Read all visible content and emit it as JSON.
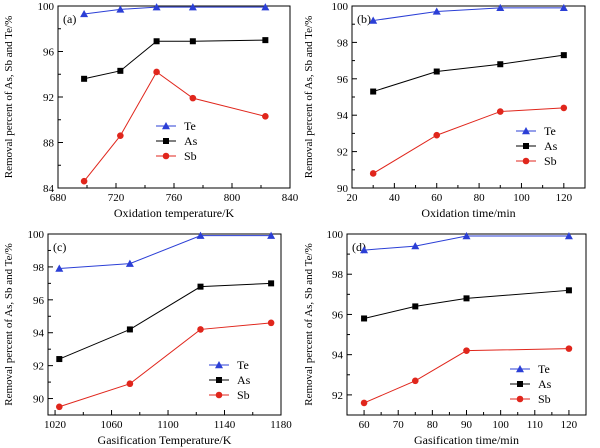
{
  "colors": {
    "Te": "#2b3fd6",
    "As": "#000000",
    "Sb": "#e0261c"
  },
  "chart_data": [
    {
      "id": "a",
      "type": "line",
      "panel_label": "(a)",
      "xlabel": "Oxidation temperature/K",
      "ylabel": "Removal percent of As, Sb and Te/%",
      "xlim": [
        680,
        840
      ],
      "ylim": [
        84,
        100
      ],
      "xticks": [
        680,
        720,
        760,
        800,
        840
      ],
      "yticks": [
        84,
        88,
        92,
        96,
        100
      ],
      "legend_position": "bottom-right",
      "series": [
        {
          "name": "Te",
          "marker": "triangle",
          "x": [
            698,
            723,
            748,
            773,
            823
          ],
          "y": [
            99.3,
            99.7,
            99.9,
            99.9,
            99.9
          ]
        },
        {
          "name": "As",
          "marker": "square",
          "x": [
            698,
            723,
            748,
            773,
            823
          ],
          "y": [
            93.6,
            94.3,
            96.9,
            96.9,
            97.0
          ]
        },
        {
          "name": "Sb",
          "marker": "circle",
          "x": [
            698,
            723,
            748,
            773,
            823
          ],
          "y": [
            84.6,
            88.6,
            94.2,
            91.9,
            90.3
          ]
        }
      ]
    },
    {
      "id": "b",
      "type": "line",
      "panel_label": "(b)",
      "xlabel": "Oxidation time/min",
      "ylabel": "Removal percent of As, Sb and Te/%",
      "xlim": [
        20,
        130
      ],
      "ylim": [
        90,
        100
      ],
      "xticks": [
        20,
        40,
        60,
        80,
        100,
        120
      ],
      "yticks": [
        90,
        92,
        94,
        96,
        98,
        100
      ],
      "legend_position": "bottom-right",
      "series": [
        {
          "name": "Te",
          "marker": "triangle",
          "x": [
            30,
            60,
            90,
            120
          ],
          "y": [
            99.2,
            99.7,
            99.9,
            99.9
          ]
        },
        {
          "name": "As",
          "marker": "square",
          "x": [
            30,
            60,
            90,
            120
          ],
          "y": [
            95.3,
            96.4,
            96.8,
            97.3
          ]
        },
        {
          "name": "Sb",
          "marker": "circle",
          "x": [
            30,
            60,
            90,
            120
          ],
          "y": [
            90.8,
            92.9,
            94.2,
            94.4
          ]
        }
      ]
    },
    {
      "id": "c",
      "type": "line",
      "panel_label": "(c)",
      "xlabel": "Gasification Temperature/K",
      "ylabel": "Removal percent of As, Sb and Te/%",
      "xlim": [
        1015,
        1180
      ],
      "ylim": [
        89,
        100
      ],
      "xticks": [
        1020,
        1060,
        1100,
        1140,
        1180
      ],
      "yticks": [
        90,
        92,
        94,
        96,
        98,
        100
      ],
      "legend_position": "bottom-right",
      "series": [
        {
          "name": "Te",
          "marker": "triangle",
          "x": [
            1023,
            1073,
            1123,
            1173
          ],
          "y": [
            97.9,
            98.2,
            99.9,
            99.9
          ]
        },
        {
          "name": "As",
          "marker": "square",
          "x": [
            1023,
            1073,
            1123,
            1173
          ],
          "y": [
            92.4,
            94.2,
            96.8,
            97.0
          ]
        },
        {
          "name": "Sb",
          "marker": "circle",
          "x": [
            1023,
            1073,
            1123,
            1173
          ],
          "y": [
            89.5,
            90.9,
            94.2,
            94.6
          ]
        }
      ]
    },
    {
      "id": "d",
      "type": "line",
      "panel_label": "(d)",
      "xlabel": "Gasification time/min",
      "ylabel": "Removal percent of As, Sb and Te/%",
      "xlim": [
        55,
        125
      ],
      "ylim": [
        91,
        100
      ],
      "xticks": [
        60,
        70,
        80,
        90,
        100,
        110,
        120
      ],
      "yticks": [
        92,
        94,
        96,
        98,
        100
      ],
      "legend_position": "bottom-right",
      "series": [
        {
          "name": "Te",
          "marker": "triangle",
          "x": [
            60,
            75,
            90,
            120
          ],
          "y": [
            99.2,
            99.4,
            99.9,
            99.9
          ]
        },
        {
          "name": "As",
          "marker": "square",
          "x": [
            60,
            75,
            90,
            120
          ],
          "y": [
            95.8,
            96.4,
            96.8,
            97.2
          ]
        },
        {
          "name": "Sb",
          "marker": "circle",
          "x": [
            60,
            75,
            90,
            120
          ],
          "y": [
            91.6,
            92.7,
            94.2,
            94.3
          ]
        }
      ]
    }
  ]
}
